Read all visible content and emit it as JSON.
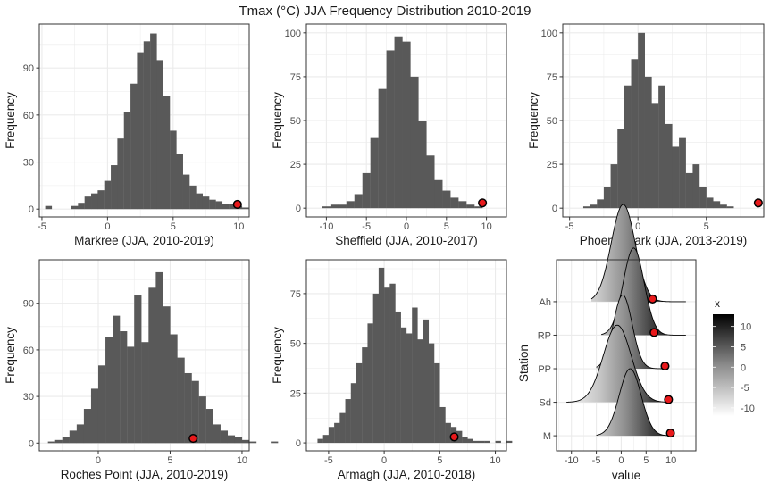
{
  "title": "Tmax (°C) JJA Frequency Distribution 2010-2019",
  "colors": {
    "bar": "#595959",
    "grid": "#ebebeb",
    "point_fill": "#e8191b",
    "point_stroke": "#000000",
    "panel_border": "#333333"
  },
  "chart_data": [
    {
      "type": "bar",
      "id": "markree",
      "xlabel": "Markree (JJA, 2010-2019)",
      "ylabel": "Frequency",
      "xlim": [
        -5.2,
        10.8
      ],
      "ylim": [
        -5,
        118
      ],
      "xticks": [
        -5,
        0,
        5,
        10
      ],
      "yticks": [
        0,
        30,
        60,
        90
      ],
      "bin_start": -4.75,
      "bin_width": 0.5,
      "counts": [
        2,
        0,
        0,
        0,
        2,
        4,
        8,
        10,
        12,
        18,
        28,
        45,
        62,
        80,
        100,
        107,
        112,
        95,
        72,
        50,
        35,
        22,
        15,
        10,
        8,
        6,
        5,
        3,
        3,
        2,
        1
      ],
      "marker": {
        "x": 9.9,
        "y": 3
      }
    },
    {
      "type": "bar",
      "id": "sheffield",
      "xlabel": "Sheffield (JJA, 2010-2017)",
      "ylabel": "Frequency",
      "xlim": [
        -12.5,
        12.5
      ],
      "ylim": [
        -5,
        105
      ],
      "xticks": [
        -10,
        -5,
        0,
        5,
        10
      ],
      "yticks": [
        0,
        25,
        50,
        75,
        100
      ],
      "bin_start": -10.5,
      "bin_width": 1,
      "counts": [
        1,
        2,
        2,
        4,
        8,
        20,
        40,
        68,
        90,
        98,
        95,
        75,
        50,
        30,
        16,
        10,
        6,
        4,
        2,
        1
      ],
      "marker": {
        "x": 9.5,
        "y": 3
      }
    },
    {
      "type": "bar",
      "id": "phoenix",
      "xlabel": "Phoenix Park (JJA, 2013-2019)",
      "ylabel": "Frequency",
      "xlim": [
        -5.5,
        9.2
      ],
      "ylim": [
        -5,
        105
      ],
      "xticks": [
        -5,
        0,
        5
      ],
      "yticks": [
        0,
        25,
        50,
        75,
        100
      ],
      "bin_start": -5,
      "bin_width": 0.5,
      "counts": [
        0,
        0,
        1,
        2,
        5,
        12,
        25,
        45,
        70,
        85,
        100,
        75,
        60,
        70,
        48,
        35,
        40,
        20,
        25,
        12,
        6,
        4,
        2,
        1,
        0,
        0,
        0,
        0
      ],
      "marker": {
        "x": 8.8,
        "y": 3
      }
    },
    {
      "type": "bar",
      "id": "roches",
      "xlabel": "Roches Point (JJA, 2010-2019)",
      "ylabel": "Frequency",
      "xlim": [
        -4.1,
        10.5
      ],
      "ylim": [
        -5,
        118
      ],
      "xticks": [
        0,
        5,
        10
      ],
      "yticks": [
        0,
        30,
        60,
        90
      ],
      "bin_start": -3.5,
      "bin_width": 0.5,
      "counts": [
        1,
        2,
        4,
        8,
        12,
        22,
        35,
        50,
        68,
        82,
        72,
        62,
        95,
        65,
        100,
        110,
        88,
        70,
        55,
        45,
        40,
        30,
        22,
        12,
        8,
        5,
        4,
        2,
        1,
        0,
        0,
        1
      ],
      "marker": {
        "x": 6.6,
        "y": 3
      }
    },
    {
      "type": "bar",
      "id": "armagh",
      "xlabel": "Armagh (JJA, 2010-2018)",
      "ylabel": "Frequency",
      "xlim": [
        -7,
        11
      ],
      "ylim": [
        -4,
        92
      ],
      "xticks": [
        -5,
        0,
        5,
        10
      ],
      "yticks": [
        0,
        25,
        50,
        75
      ],
      "bin_start": -6,
      "bin_width": 0.5,
      "counts": [
        2,
        4,
        8,
        10,
        15,
        22,
        30,
        40,
        48,
        60,
        75,
        88,
        78,
        80,
        66,
        58,
        55,
        68,
        52,
        62,
        50,
        40,
        18,
        10,
        8,
        6,
        3,
        2,
        1,
        1,
        1,
        0,
        1,
        0,
        1
      ],
      "marker": {
        "x": 6.3,
        "y": 3
      }
    },
    {
      "type": "area",
      "id": "ridgeline",
      "xlabel": "value",
      "ylabel": "Station",
      "xlim": [
        -13,
        15
      ],
      "xticks": [
        -10,
        -5,
        0,
        5,
        10
      ],
      "categories": [
        "M",
        "Sd",
        "PP",
        "RP",
        "Ah"
      ],
      "legend": {
        "title": "x",
        "ticks": [
          10,
          5,
          0,
          -5,
          -10
        ],
        "range": [
          -12,
          13
        ]
      },
      "ridges": [
        {
          "station": "M",
          "mean": 1.8,
          "sd": 2.2,
          "height": 2.0,
          "range": [
            -5,
            10
          ],
          "marker": 9.9
        },
        {
          "station": "Sd",
          "mean": -0.8,
          "sd": 2.8,
          "height": 2.3,
          "range": [
            -11,
            10
          ],
          "marker": 9.5
        },
        {
          "station": "PP",
          "mean": 0.3,
          "sd": 1.9,
          "height": 2.2,
          "range": [
            -5,
            9
          ],
          "marker": 8.8
        },
        {
          "station": "RP",
          "mean": 2.5,
          "sd": 2.1,
          "height": 2.6,
          "range": [
            -4,
            13
          ],
          "marker": 6.6
        },
        {
          "station": "Ah",
          "mean": 0.4,
          "sd": 2.4,
          "height": 2.9,
          "range": [
            -6,
            13
          ],
          "marker": 6.3
        }
      ]
    }
  ]
}
